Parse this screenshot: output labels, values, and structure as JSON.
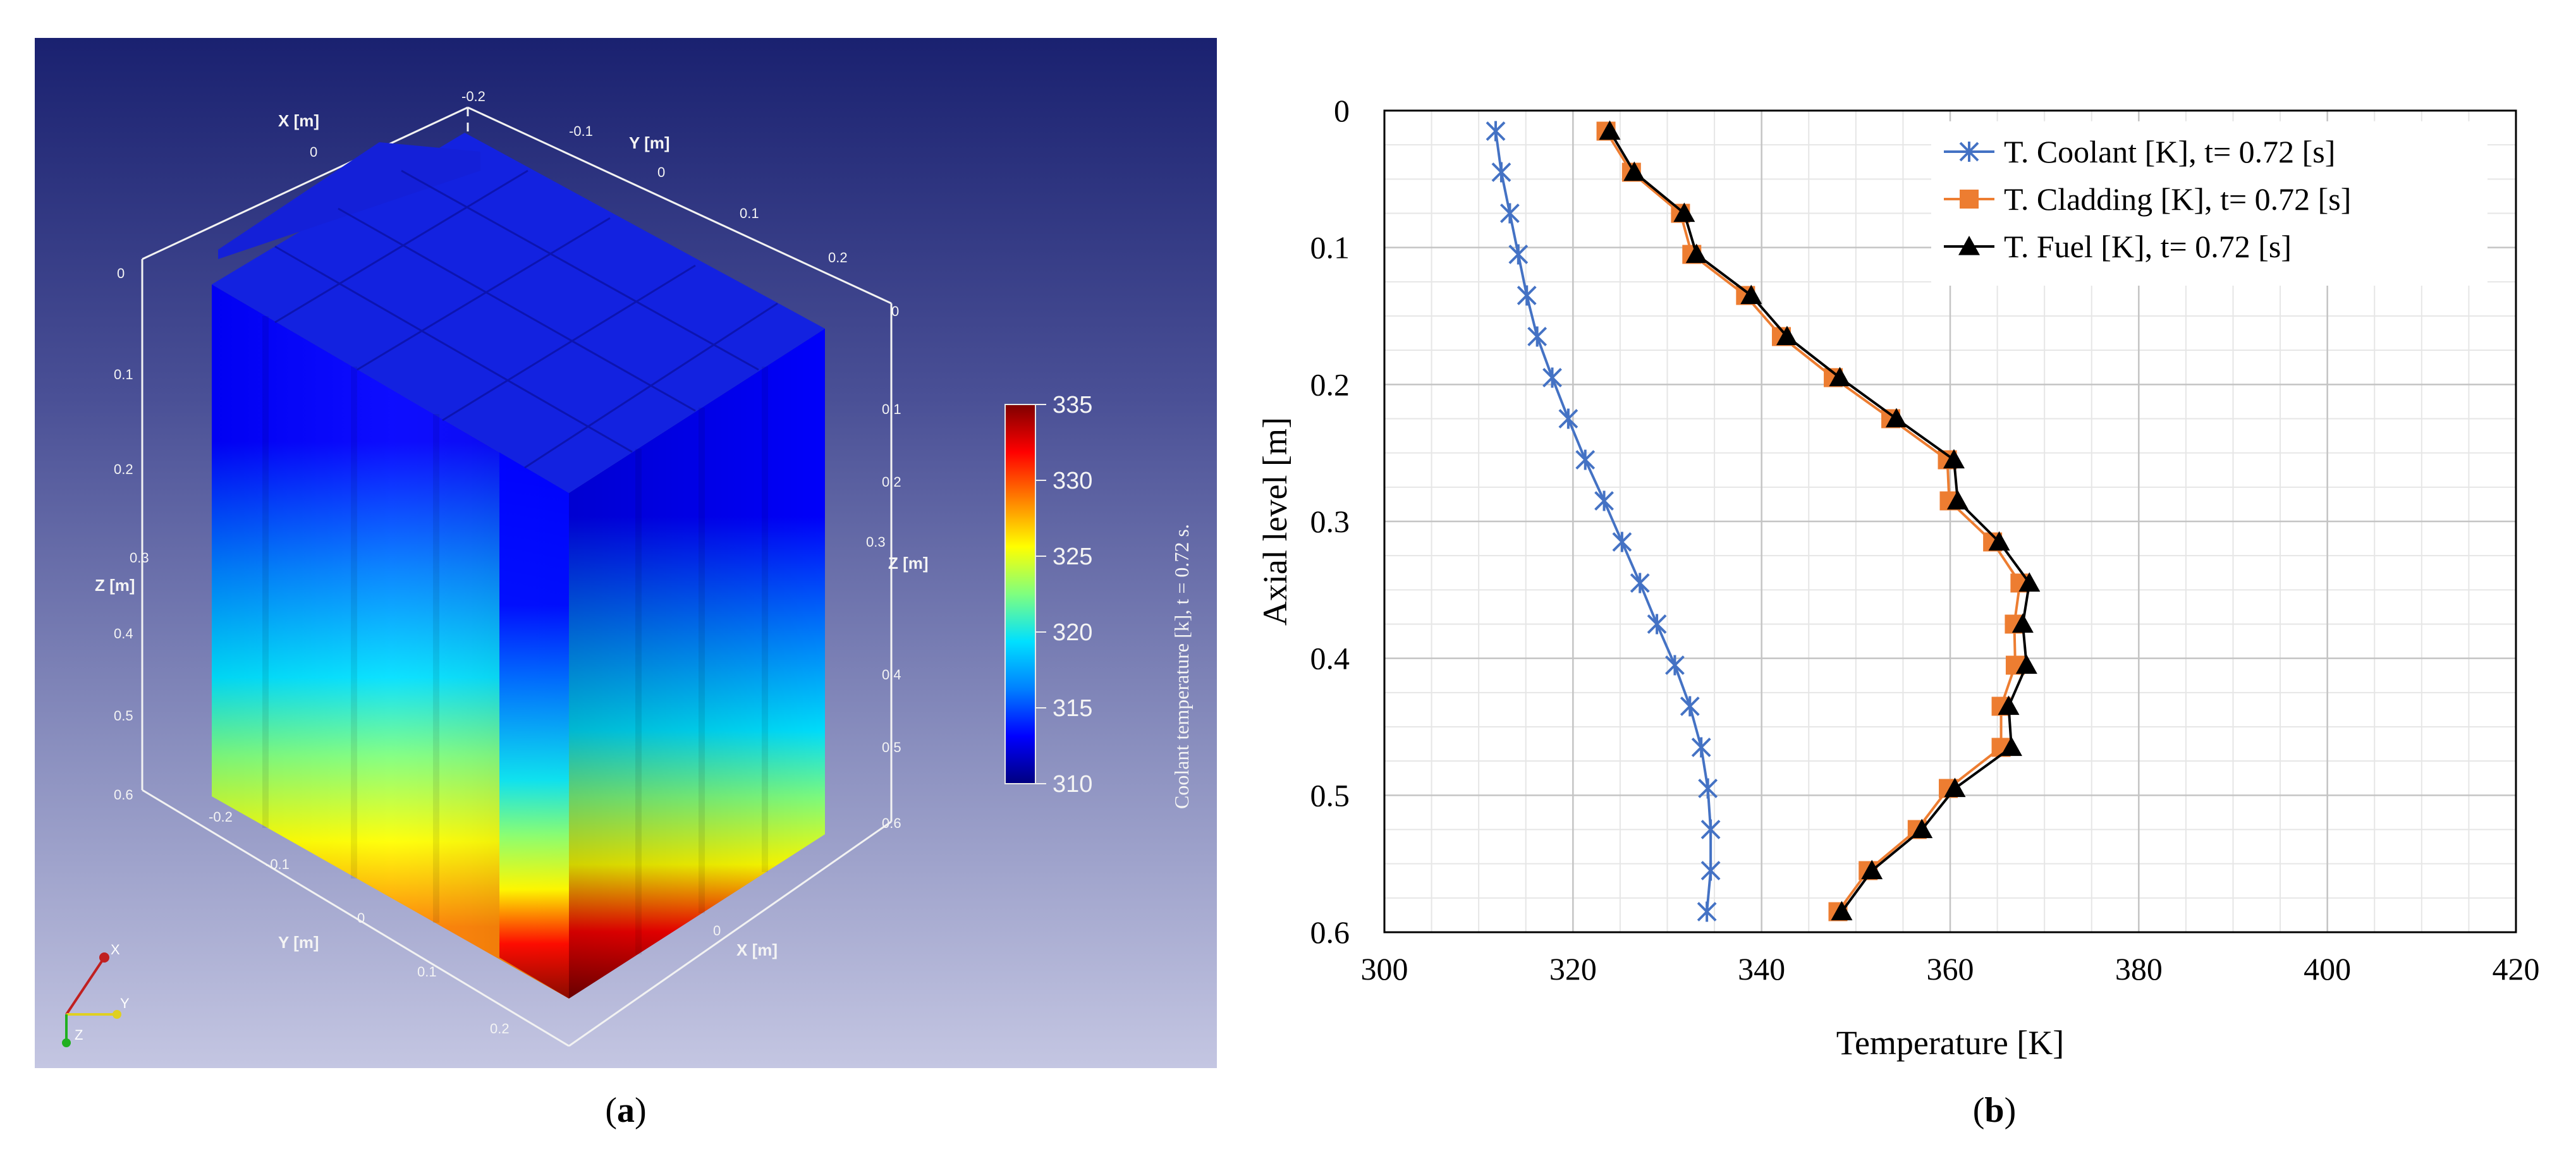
{
  "panels": {
    "a": {
      "label": "(a)",
      "letter": "a"
    },
    "b": {
      "label": "(b)",
      "letter": "b"
    }
  },
  "render3d": {
    "x_axis_label": "X [m]",
    "y_axis_label": "Y [m]",
    "z_axis_label": "Z [m]",
    "x_ticks_top": [
      "0"
    ],
    "y_ticks_top": [
      "-0.2",
      "-0.1",
      "0",
      "0.1",
      "0.2"
    ],
    "z_ticks": [
      "0",
      "0.1",
      "0.2",
      "0.3",
      "0.4",
      "0.5",
      "0.6"
    ],
    "y_ticks_bottom": [
      "-0.2",
      "-0.1",
      "0",
      "0.1",
      "0.2"
    ],
    "x_ticks_bottom": [
      "0"
    ],
    "orientation": {
      "x": "X",
      "y": "Y",
      "z": "Z"
    },
    "colorbar": {
      "title": "Coolant temperature [k], t = 0.72 s.",
      "ticks": [
        "335",
        "330",
        "325",
        "320",
        "315",
        "310"
      ],
      "min": 310,
      "max": 335,
      "colors": [
        "#00007f",
        "#0000ff",
        "#0080ff",
        "#00e0ff",
        "#7fff7f",
        "#ffff00",
        "#ff8000",
        "#ff0000",
        "#7f0000"
      ]
    }
  },
  "chart_data": {
    "type": "line",
    "xlabel": "Temperature [K]",
    "ylabel": "Axial level  [m]",
    "xlim": [
      300,
      420
    ],
    "ylim": [
      0,
      0.6
    ],
    "y_inverted": true,
    "grid": true,
    "legend_position": "top-right",
    "x_ticks": [
      300,
      320,
      340,
      360,
      380,
      400,
      420
    ],
    "y_ticks": [
      0,
      0.1,
      0.2,
      0.3,
      0.4,
      0.5,
      0.6
    ],
    "y": [
      0.015,
      0.045,
      0.075,
      0.105,
      0.135,
      0.165,
      0.195,
      0.225,
      0.255,
      0.285,
      0.315,
      0.345,
      0.375,
      0.405,
      0.435,
      0.465,
      0.495,
      0.525,
      0.555,
      0.585
    ],
    "series": [
      {
        "name": "T. Coolant [K], t= 0.72 [s]",
        "color": "#4472c4",
        "marker": "star",
        "values": [
          311.8,
          312.4,
          313.3,
          314.2,
          315.1,
          316.2,
          317.8,
          319.5,
          321.3,
          323.3,
          325.2,
          327.1,
          328.9,
          330.8,
          332.4,
          333.6,
          334.3,
          334.6,
          334.6,
          334.2
        ]
      },
      {
        "name": "T. Cladding [K], t= 0.72 [s]",
        "color": "#ed7d31",
        "marker": "square",
        "values": [
          323.5,
          326.2,
          331.4,
          332.6,
          338.3,
          342.1,
          347.6,
          353.7,
          359.7,
          359.9,
          364.5,
          367.4,
          366.8,
          366.9,
          365.4,
          365.4,
          359.8,
          356.5,
          351.3,
          348.1
        ]
      },
      {
        "name": "T. Fuel [K], t= 0.72 [s]",
        "color": "#000000",
        "marker": "triangle",
        "values": [
          323.9,
          326.5,
          331.8,
          333.1,
          338.9,
          342.7,
          348.3,
          354.3,
          360.4,
          360.8,
          365.2,
          368.4,
          367.7,
          368.1,
          366.2,
          366.5,
          360.5,
          357.0,
          351.7,
          348.5
        ]
      }
    ]
  }
}
